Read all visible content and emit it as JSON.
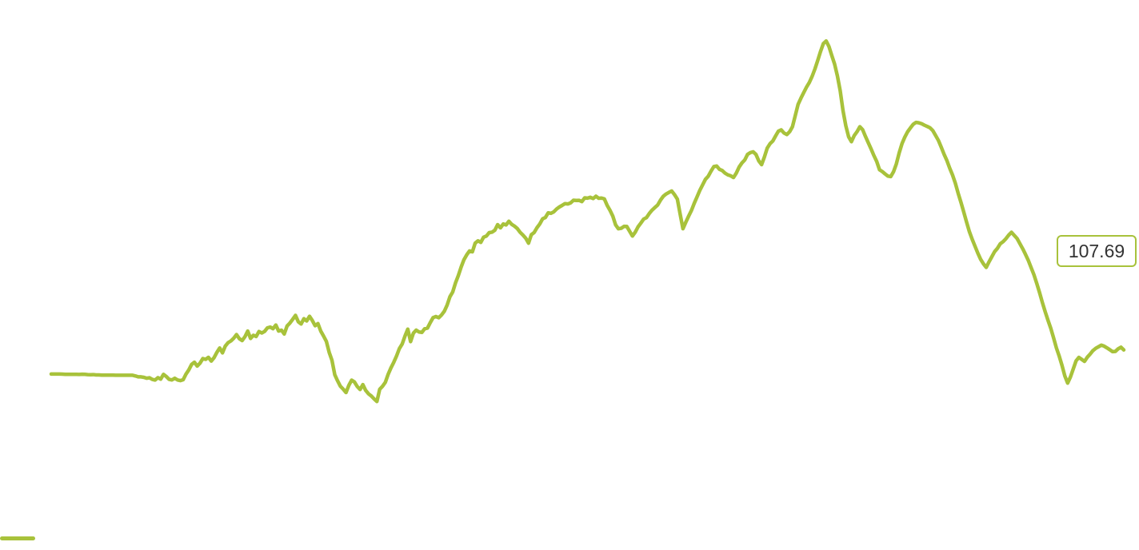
{
  "chart_data": {
    "type": "line",
    "title": "",
    "xlabel": "",
    "ylabel": "",
    "grid": false,
    "legend": "bottom-left",
    "ylim": [
      90,
      140
    ],
    "series": [
      {
        "color": "#a8c23b",
        "last_value_label": "107.69",
        "values": [
          105.57,
          105.57,
          105.57,
          105.57,
          105.56,
          105.54,
          105.54,
          105.54,
          105.54,
          105.54,
          105.53,
          105.55,
          105.54,
          105.52,
          105.51,
          105.52,
          105.49,
          105.49,
          105.47,
          105.47,
          105.47,
          105.47,
          105.47,
          105.46,
          105.46,
          105.46,
          105.46,
          105.46,
          105.46,
          105.46,
          105.4,
          105.32,
          105.32,
          105.28,
          105.2,
          105.24,
          105.1,
          105.04,
          105.25,
          105.12,
          105.54,
          105.35,
          105.1,
          105.05,
          105.2,
          105.05,
          104.99,
          105.07,
          105.56,
          105.93,
          106.41,
          106.61,
          106.27,
          106.52,
          106.93,
          106.86,
          107.04,
          106.71,
          107.01,
          107.47,
          107.86,
          107.43,
          108.03,
          108.33,
          108.48,
          108.72,
          109.04,
          108.68,
          108.51,
          108.85,
          109.35,
          108.7,
          108.98,
          108.87,
          109.31,
          109.18,
          109.32,
          109.63,
          109.7,
          109.56,
          109.88,
          109.35,
          109.43,
          109.09,
          109.79,
          110.05,
          110.38,
          110.73,
          110.17,
          109.97,
          110.44,
          110.24,
          110.65,
          110.28,
          109.82,
          110.01,
          109.35,
          108.91,
          108.44,
          107.48,
          106.77,
          105.5,
          104.97,
          104.49,
          104.24,
          103.94,
          104.57,
          105.03,
          104.87,
          104.47,
          104.21,
          104.64,
          104.13,
          103.83,
          103.64,
          103.38,
          103.15,
          104.23,
          104.49,
          104.84,
          105.54,
          106.11,
          106.6,
          107.16,
          107.81,
          108.21,
          108.91,
          109.52,
          108.42,
          109.17,
          109.43,
          109.27,
          109.23,
          109.55,
          109.61,
          110.09,
          110.53,
          110.63,
          110.52,
          110.76,
          111.09,
          111.63,
          112.37,
          112.79,
          113.59,
          114.23,
          114.98,
          115.63,
          116.06,
          116.4,
          116.32,
          117.09,
          117.29,
          117.15,
          117.61,
          117.71,
          118.01,
          118.05,
          118.22,
          118.71,
          118.43,
          118.77,
          118.69,
          119.01,
          118.74,
          118.58,
          118.37,
          118.04,
          117.8,
          117.52,
          117.08,
          117.83,
          118.02,
          118.44,
          118.77,
          119.22,
          119.34,
          119.75,
          119.71,
          119.84,
          120.09,
          120.27,
          120.41,
          120.56,
          120.53,
          120.63,
          120.86,
          120.84,
          120.85,
          120.74,
          121.07,
          121.04,
          121.12,
          121.01,
          121.21,
          121.03,
          121.05,
          120.98,
          120.41,
          119.98,
          119.47,
          118.7,
          118.35,
          118.39,
          118.56,
          118.55,
          118.13,
          117.71,
          118.05,
          118.52,
          118.85,
          119.2,
          119.33,
          119.69,
          119.99,
          120.22,
          120.44,
          120.87,
          121.21,
          121.41,
          121.55,
          121.67,
          121.35,
          120.96,
          119.63,
          118.35,
          118.92,
          119.45,
          119.95,
          120.58,
          121.15,
          121.73,
          122.21,
          122.7,
          122.97,
          123.42,
          123.82,
          123.87,
          123.58,
          123.47,
          123.24,
          123.09,
          123.01,
          122.86,
          123.25,
          123.78,
          124.14,
          124.4,
          124.89,
          125.05,
          125.12,
          124.89,
          124.32,
          123.99,
          124.66,
          125.44,
          125.83,
          126.07,
          126.52,
          126.94,
          127.05,
          126.77,
          126.64,
          126.89,
          127.33,
          128.31,
          129.29,
          129.83,
          130.33,
          130.81,
          131.22,
          131.76,
          132.41,
          133.16,
          133.95,
          134.64,
          134.87,
          134.38,
          133.59,
          132.84,
          131.8,
          130.49,
          128.74,
          127.41,
          126.44,
          126.01,
          126.55,
          126.89,
          127.33,
          127.06,
          126.47,
          125.92,
          125.37,
          124.79,
          124.27,
          123.54,
          123.38,
          123.17,
          122.98,
          122.94,
          123.37,
          124.06,
          125.02,
          125.83,
          126.41,
          126.88,
          127.22,
          127.54,
          127.71,
          127.67,
          127.59,
          127.46,
          127.35,
          127.23,
          126.98,
          126.55,
          126.11,
          125.52,
          124.9,
          124.35,
          123.68,
          123.08,
          122.36,
          121.48,
          120.68,
          119.82,
          118.94,
          118.1,
          117.43,
          116.82,
          116.21,
          115.67,
          115.27,
          114.95,
          115.44,
          115.89,
          116.34,
          116.63,
          117.03,
          117.21,
          117.47,
          117.79,
          118.04,
          117.76,
          117.49,
          117.04,
          116.59,
          116.09,
          115.56,
          114.93,
          114.3,
          113.54,
          112.73,
          111.86,
          111.05,
          110.3,
          109.59,
          108.74,
          107.86,
          107.14,
          106.32,
          105.4,
          104.77,
          105.31,
          106.02,
          106.73,
          107.03,
          106.86,
          106.68,
          107.05,
          107.32,
          107.63,
          107.83,
          107.97,
          108.11,
          108.02,
          107.87,
          107.71,
          107.54,
          107.56,
          107.79,
          107.93,
          107.69
        ]
      }
    ]
  }
}
